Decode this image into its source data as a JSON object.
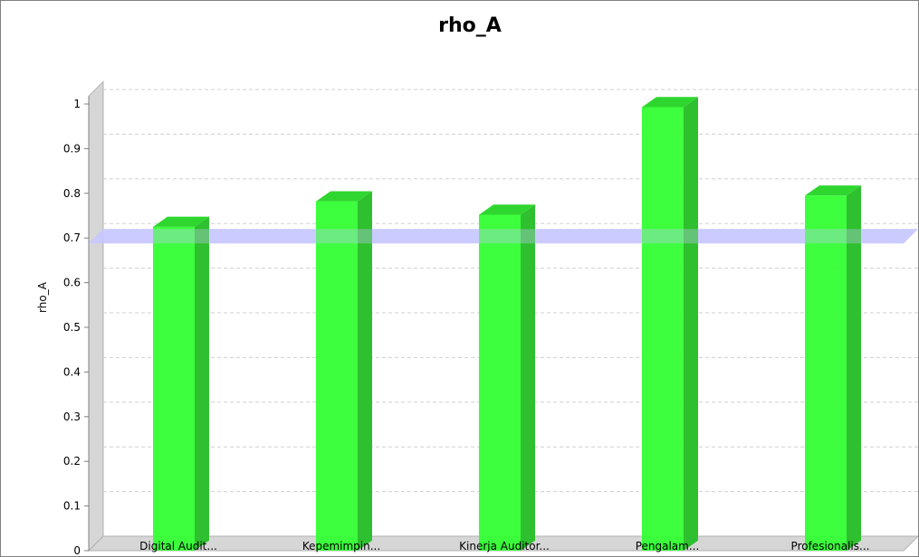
{
  "chart_data": {
    "type": "bar",
    "title": "rho_A",
    "xlabel": "",
    "ylabel": "rho_A",
    "categories": [
      "Digital Audit...",
      "Kepemimpin...",
      "Kinerja Auditor...",
      "Pengalam...",
      "Profesionalis..."
    ],
    "values": [
      0.725,
      0.782,
      0.752,
      0.993,
      0.795
    ],
    "ylim": [
      0,
      1.05
    ],
    "yticks": [
      "0",
      "0.1",
      "0.2",
      "0.3",
      "0.4",
      "0.5",
      "0.6",
      "0.7",
      "0.8",
      "0.9",
      "1"
    ],
    "threshold": 0.7,
    "grid": true,
    "bar_color": "#33ff33",
    "bar_side_color": "#2ec02e",
    "bar_top_color": "#2fd62f",
    "threshold_color": "#c8c8ff",
    "style": "3d"
  }
}
